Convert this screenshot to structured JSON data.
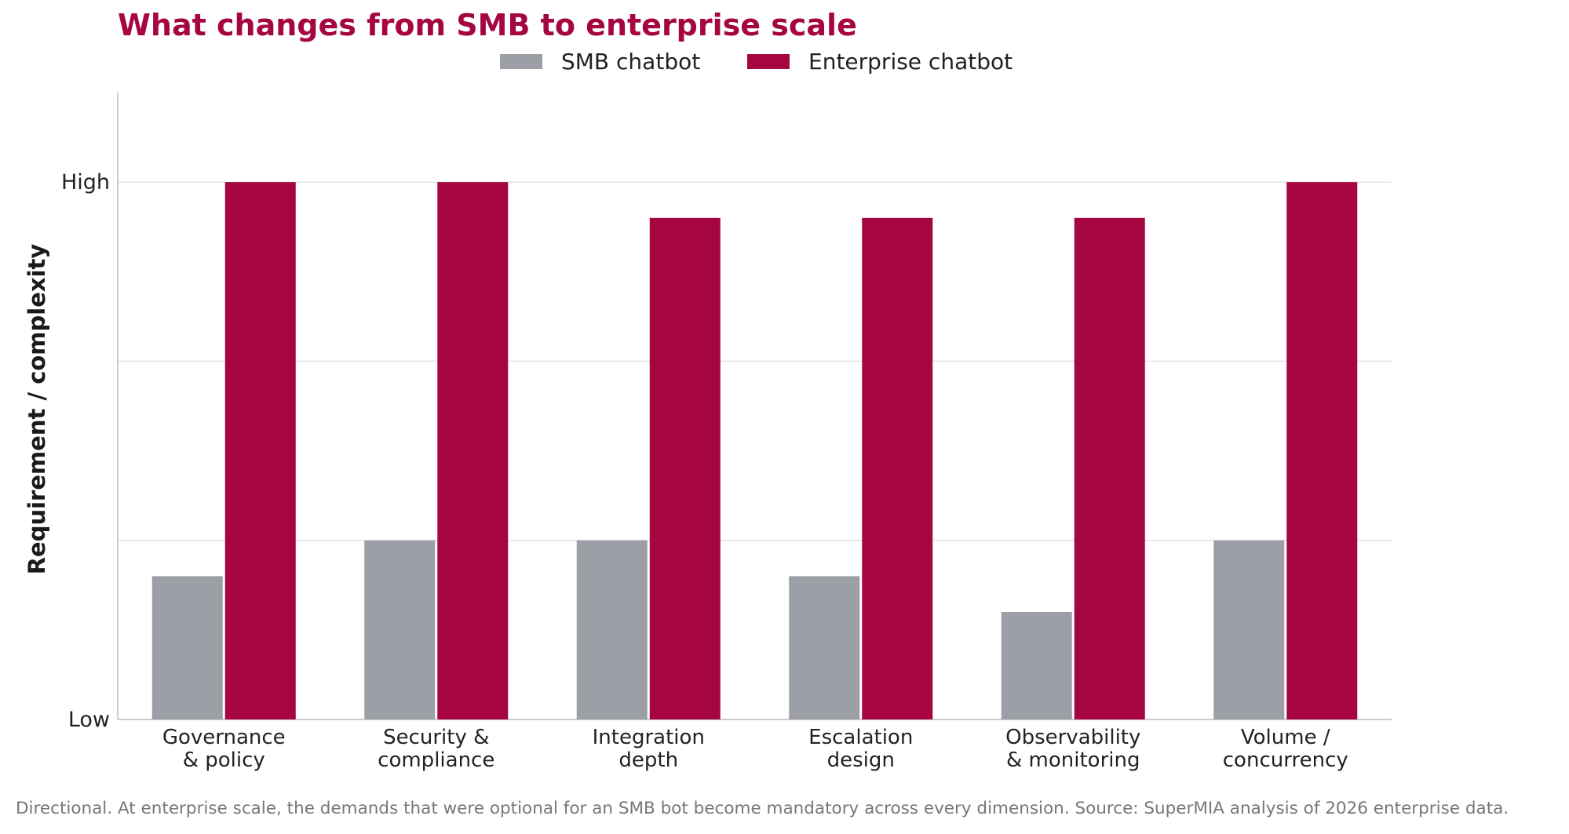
{
  "chart_data": {
    "type": "bar",
    "title": "What changes from SMB to enterprise scale",
    "xlabel": "",
    "ylabel": "Requirement / complexity",
    "ylim": [
      0,
      3.5
    ],
    "yticks": [
      {
        "value": 0,
        "label": "Low"
      },
      {
        "value": 3,
        "label": "High"
      }
    ],
    "ygrid_values": [
      1,
      2,
      3
    ],
    "grid": "horizontal",
    "legend_position": "top-center",
    "categories": [
      [
        "Governance",
        "& policy"
      ],
      [
        "Security &",
        "compliance"
      ],
      [
        "Integration",
        "depth"
      ],
      [
        "Escalation",
        "design"
      ],
      [
        "Observability",
        "& monitoring"
      ],
      [
        "Volume /",
        "concurrency"
      ]
    ],
    "series": [
      {
        "name": "SMB chatbot",
        "color": "#9ca0a6",
        "values": [
          0.8,
          1.0,
          1.0,
          0.8,
          0.6,
          1.0
        ]
      },
      {
        "name": "Enterprise chatbot",
        "color": "#a50540",
        "values": [
          3.0,
          3.0,
          2.8,
          2.8,
          2.8,
          3.0
        ]
      }
    ]
  },
  "footnote": "Directional. At enterprise scale, the demands that were optional for an SMB bot become mandatory across every dimension. Source: SuperMIA analysis of 2026 enterprise data."
}
